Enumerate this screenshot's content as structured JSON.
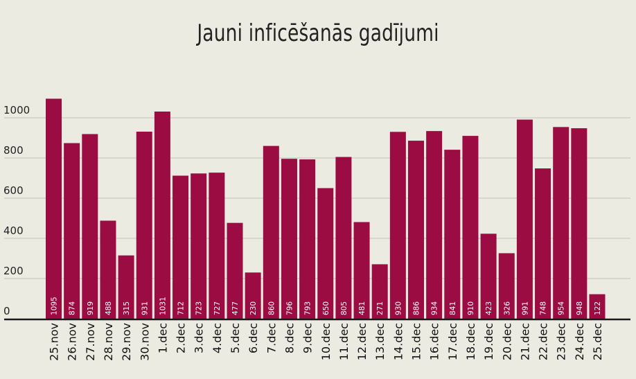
{
  "chart_data": {
    "type": "bar",
    "title": "Jauni inficēšanās gadījumi",
    "xlabel": "",
    "ylabel": "",
    "ylim": [
      0,
      1150
    ],
    "yticks": [
      0,
      200,
      400,
      600,
      800,
      1000
    ],
    "grid": true,
    "bar_color": "#9b0d42",
    "background_color": "#ecebe2",
    "categories": [
      "25.nov",
      "26.nov",
      "27.nov",
      "28.nov",
      "29.nov",
      "30.nov",
      "1.dec",
      "2.dec",
      "3.dec",
      "4.dec",
      "5.dec",
      "6.dec",
      "7.dec",
      "8.dec",
      "9.dec",
      "10.dec",
      "11.dec",
      "12.dec",
      "13.dec",
      "14.dec",
      "15.dec",
      "16.dec",
      "17.dec",
      "18.dec",
      "19.dec",
      "20.dec",
      "21.dec",
      "22.dec",
      "23.dec",
      "24.dec",
      "25.dec"
    ],
    "values": [
      1095,
      874,
      919,
      488,
      315,
      931,
      1031,
      712,
      723,
      727,
      477,
      230,
      860,
      796,
      793,
      650,
      805,
      481,
      271,
      930,
      886,
      934,
      841,
      910,
      423,
      326,
      991,
      748,
      954,
      948,
      122
    ]
  }
}
